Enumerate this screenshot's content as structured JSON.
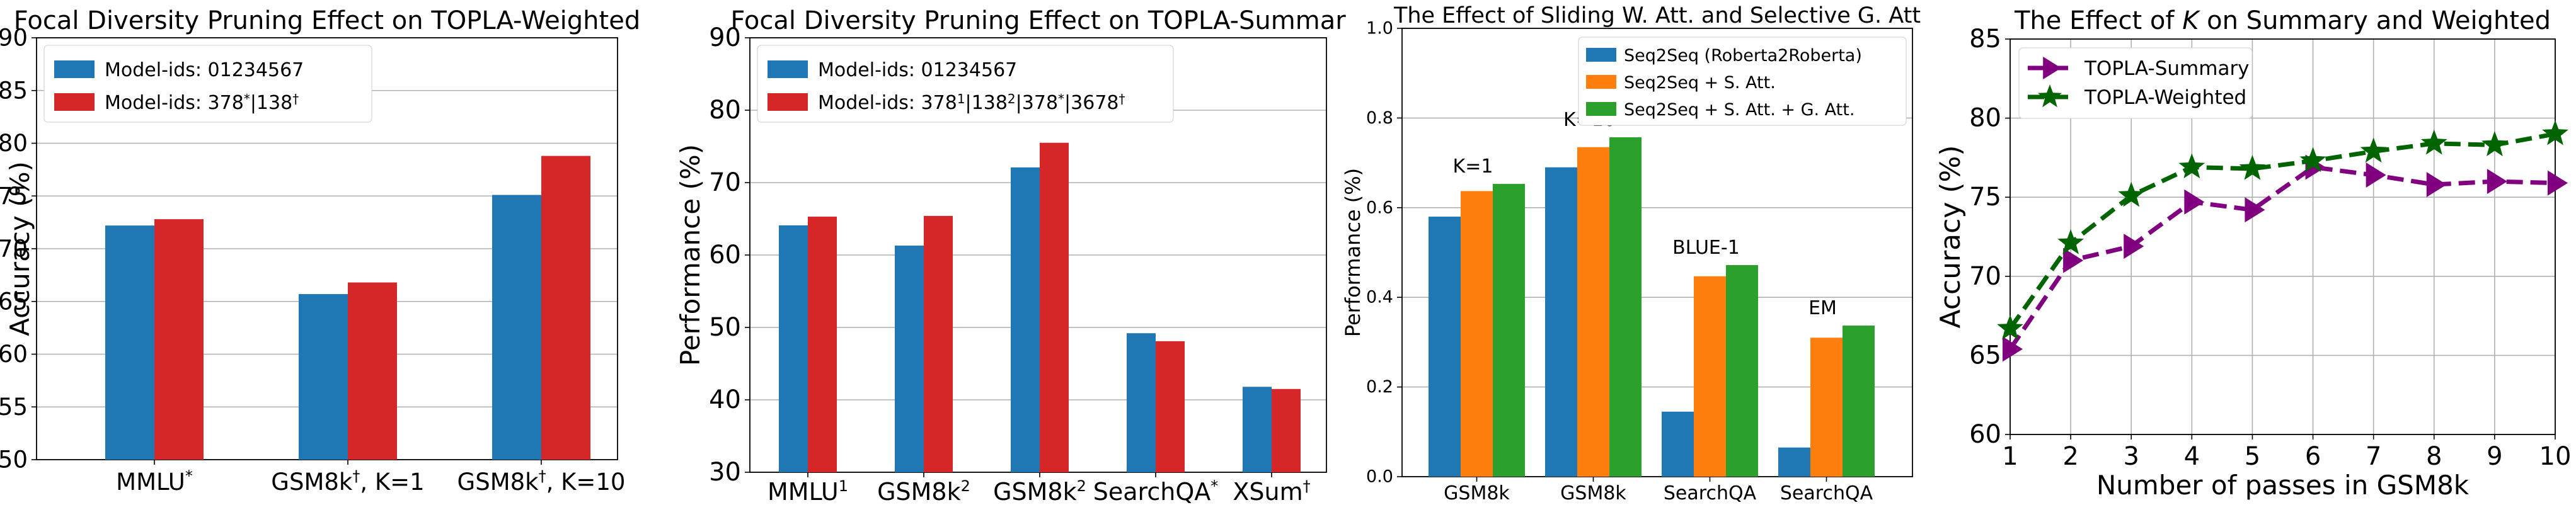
{
  "chart_data": [
    {
      "type": "bar",
      "title": "Focal Diversity Pruning Effect on TOPLA-Weighted",
      "ylabel": "Accuracy (%)",
      "xlabel": "",
      "ylim": [
        50,
        90
      ],
      "yticks": [
        50,
        55,
        60,
        65,
        70,
        75,
        80,
        85,
        90
      ],
      "grid": "horizontal",
      "legend_position": "top-left",
      "categories": [
        {
          "main": "MMLU",
          "sup": "*",
          "rest": ""
        },
        {
          "main": "GSM8k",
          "sup": "†",
          "rest": ", K=1"
        },
        {
          "main": "GSM8k",
          "sup": "†",
          "rest": ", K=10"
        }
      ],
      "series": [
        {
          "name": "Model-ids: 01234567",
          "color": "#1f77b4",
          "values": [
            72.2,
            65.7,
            75.1
          ]
        },
        {
          "name": "Model-ids: 378*|138†",
          "color": "#d62728",
          "values": [
            72.8,
            66.8,
            78.8
          ]
        }
      ]
    },
    {
      "type": "bar",
      "title": "Focal Diversity Pruning Effect on TOPLA-Summar",
      "ylabel": "Performance (%)",
      "xlabel": "",
      "ylim": [
        30,
        90
      ],
      "yticks": [
        30,
        40,
        50,
        60,
        70,
        80,
        90
      ],
      "grid": "horizontal",
      "legend_position": "top-left",
      "categories": [
        {
          "main": "MMLU",
          "sup": "1",
          "rest": ""
        },
        {
          "main": "GSM8k",
          "sup": "2",
          "rest": ""
        },
        {
          "main": "GSM8k",
          "sup": "2",
          "rest": ""
        },
        {
          "main": "SearchQA",
          "sup": "*",
          "rest": ""
        },
        {
          "main": "XSum",
          "sup": "†",
          "rest": ""
        }
      ],
      "series": [
        {
          "name": "Model-ids: 01234567",
          "color": "#1f77b4",
          "values": [
            64.1,
            61.3,
            72.1,
            49.2,
            41.8
          ]
        },
        {
          "name": "Model-ids: 378¹|138²|378*|3678†",
          "color": "#d62728",
          "values": [
            65.3,
            65.4,
            75.5,
            48.1,
            41.5
          ]
        }
      ]
    },
    {
      "type": "bar",
      "title": "The Effect of Sliding W. Att. and Selective G. Att",
      "ylabel": "Performance (%)",
      "xlabel": "",
      "ylim": [
        0.0,
        1.0
      ],
      "yticks": [
        "0.0",
        "0.2",
        "0.4",
        "0.6",
        "0.8",
        "1.0"
      ],
      "grid": "horizontal",
      "legend_position": "top-right",
      "categories": [
        "GSM8k",
        "GSM8k",
        "SearchQA",
        "SearchQA"
      ],
      "annotations": [
        "K=1",
        "K=10",
        "BLUE-1",
        "EM"
      ],
      "series": [
        {
          "name": "Seq2Seq (Roberta2Roberta)",
          "color": "#1f77b4",
          "values": [
            0.58,
            0.69,
            0.145,
            0.065
          ]
        },
        {
          "name": "Seq2Seq + S. Att.",
          "color": "#ff7f0e",
          "values": [
            0.637,
            0.735,
            0.447,
            0.31
          ]
        },
        {
          "name": "Seq2Seq + S. Att. + G. Att.",
          "color": "#2ca02c",
          "values": [
            0.653,
            0.757,
            0.472,
            0.337
          ]
        }
      ]
    },
    {
      "type": "line",
      "title": "The Effect of K on Summary and Weighted",
      "title_parts": [
        "The Effect of ",
        "K",
        " on Summary and Weighted"
      ],
      "ylabel": "Accuracy (%)",
      "xlabel": "Number of passes in GSM8k",
      "xlim": [
        1,
        10
      ],
      "ylim": [
        60,
        85
      ],
      "xticks": [
        1,
        2,
        3,
        4,
        5,
        6,
        7,
        8,
        9,
        10
      ],
      "yticks": [
        60,
        65,
        70,
        75,
        80,
        85
      ],
      "grid": "both",
      "legend_position": "top-left",
      "x": [
        1,
        2,
        3,
        4,
        5,
        6,
        7,
        8,
        9,
        10
      ],
      "series": [
        {
          "name": "TOPLA-Summary",
          "color": "#800080",
          "marker": "triangle-right",
          "values": [
            65.4,
            71.0,
            71.9,
            74.7,
            74.2,
            76.9,
            76.4,
            75.8,
            76.0,
            75.9
          ]
        },
        {
          "name": "TOPLA-Weighted",
          "color": "#006400",
          "marker": "star",
          "values": [
            66.7,
            72.1,
            75.1,
            76.9,
            76.8,
            77.3,
            77.9,
            78.4,
            78.3,
            79.0
          ]
        }
      ]
    }
  ]
}
